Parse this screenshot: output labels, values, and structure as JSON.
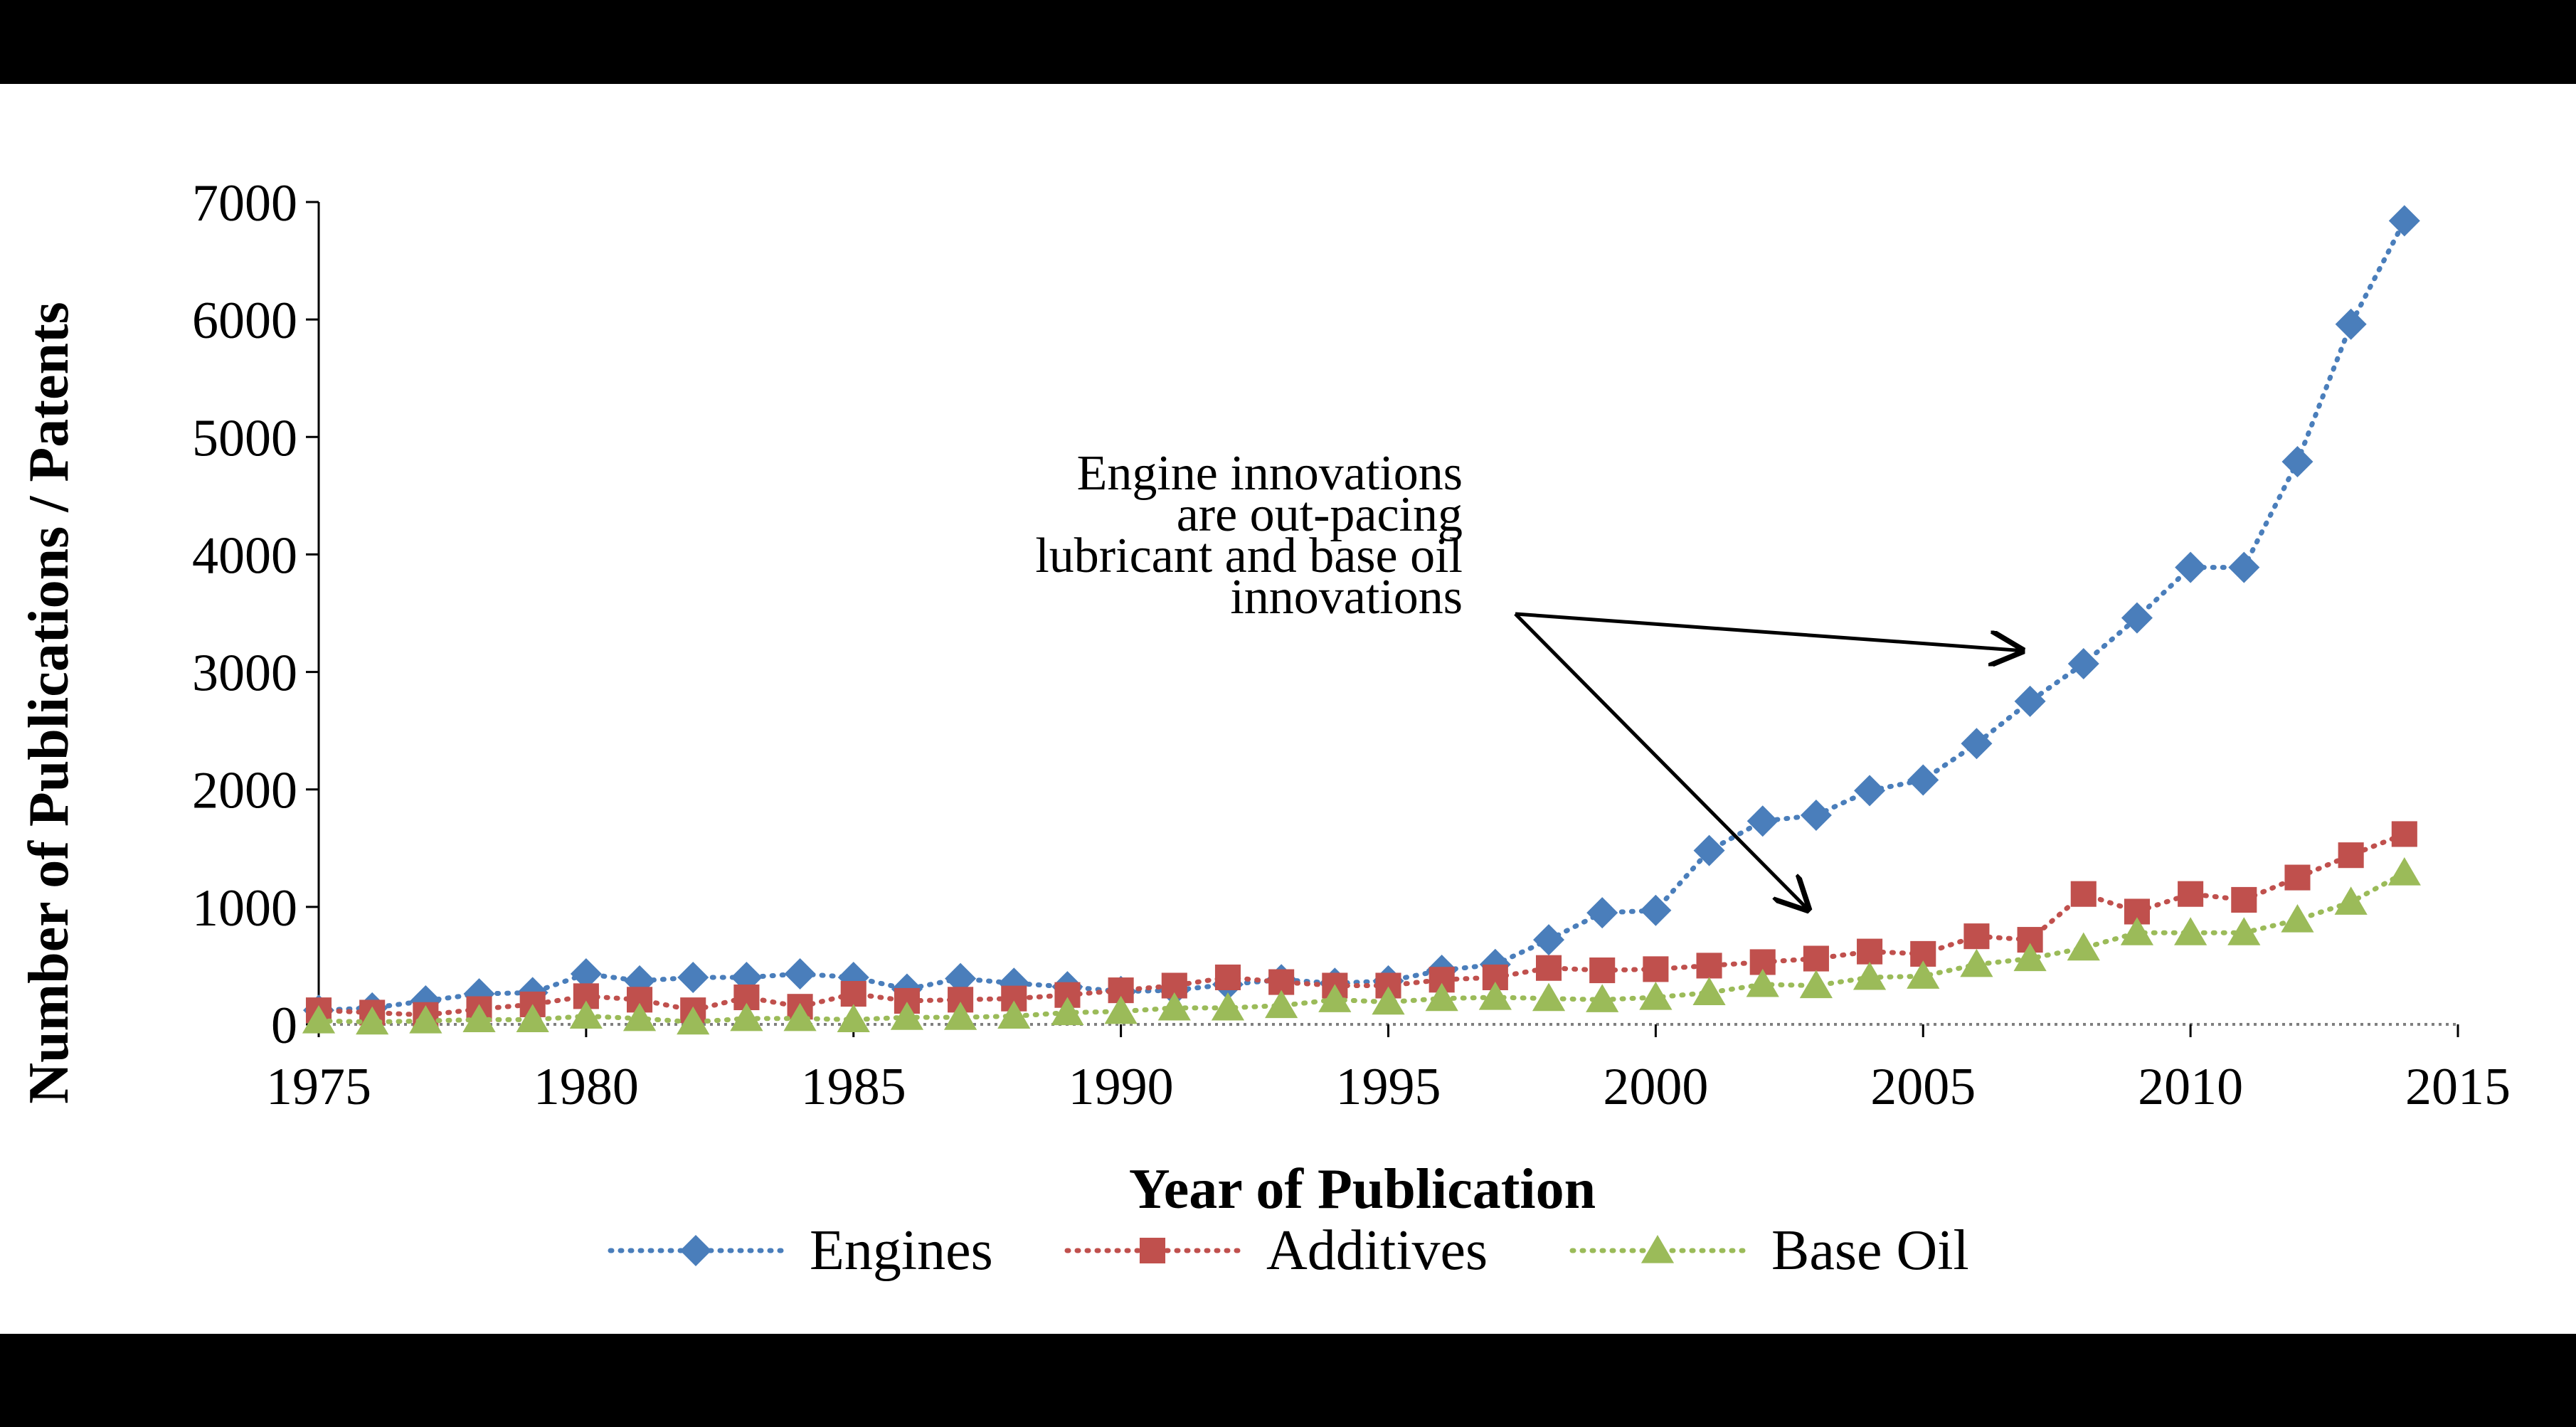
{
  "chart_data": {
    "type": "line",
    "title": "",
    "xlabel": "Year of Publication",
    "ylabel": "Number of Publications / Patents",
    "xlim": [
      1975,
      2015
    ],
    "ylim": [
      0,
      7000
    ],
    "x_ticks": [
      "1975",
      "1980",
      "1985",
      "1990",
      "1995",
      "2000",
      "2005",
      "2010",
      "2015"
    ],
    "y_ticks": [
      "0",
      "1000",
      "2000",
      "3000",
      "4000",
      "5000",
      "6000",
      "7000"
    ],
    "x": [
      1975,
      1976,
      1977,
      1978,
      1979,
      1980,
      1981,
      1982,
      1983,
      1984,
      1985,
      1986,
      1987,
      1988,
      1989,
      1990,
      1991,
      1992,
      1993,
      1994,
      1995,
      1996,
      1997,
      1998,
      1999,
      2000,
      2001,
      2002,
      2003,
      2004,
      2005,
      2006,
      2007,
      2008,
      2009,
      2010,
      2011,
      2012,
      2013,
      2014
    ],
    "series": [
      {
        "name": "Engines",
        "color": "#4a7ebb",
        "marker": "diamond",
        "values": [
          120,
          140,
          200,
          260,
          270,
          430,
          370,
          400,
          400,
          430,
          400,
          300,
          390,
          350,
          320,
          280,
          290,
          340,
          380,
          350,
          370,
          460,
          510,
          720,
          950,
          970,
          1480,
          1730,
          1780,
          1990,
          2080,
          2390,
          2750,
          3070,
          3460,
          3890,
          3890,
          4790,
          5960,
          6840
        ]
      },
      {
        "name": "Additives",
        "color": "#c0504d",
        "marker": "square",
        "values": [
          120,
          100,
          80,
          130,
          170,
          240,
          210,
          120,
          230,
          150,
          260,
          200,
          210,
          220,
          250,
          290,
          330,
          400,
          360,
          330,
          330,
          380,
          400,
          480,
          460,
          470,
          500,
          530,
          560,
          620,
          600,
          750,
          720,
          1110,
          960,
          1110,
          1060,
          1250,
          1440,
          1620
        ]
      },
      {
        "name": "Base Oil",
        "color": "#9bbb59",
        "marker": "triangle",
        "values": [
          30,
          20,
          30,
          40,
          40,
          70,
          50,
          20,
          50,
          50,
          40,
          60,
          60,
          70,
          100,
          110,
          140,
          140,
          160,
          210,
          190,
          220,
          230,
          220,
          210,
          230,
          270,
          340,
          330,
          400,
          410,
          510,
          560,
          650,
          780,
          780,
          780,
          890,
          1040,
          1290
        ]
      }
    ],
    "annotation": {
      "lines": [
        "Engine innovations",
        "are out-pacing",
        "lubricant and base oil",
        "innovations"
      ],
      "arrow_targets": [
        [
          2007,
          3000
        ],
        [
          2003,
          800
        ]
      ]
    },
    "legend_position": "bottom",
    "grid": false
  }
}
